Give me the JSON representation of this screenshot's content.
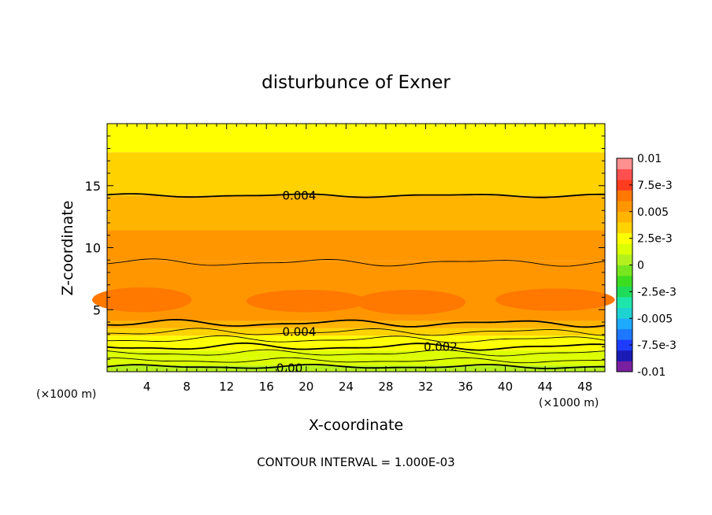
{
  "chart_data": {
    "type": "heatmap",
    "title": "disturbunce of Exner",
    "xlabel": "X-coordinate",
    "ylabel": "Z-coordinate",
    "x_unit_left": "(×1000 m)",
    "x_unit_right": "(×1000 m)",
    "xlim": [
      0,
      50
    ],
    "ylim": [
      0,
      20
    ],
    "x_ticks": [
      4,
      8,
      12,
      16,
      20,
      24,
      28,
      32,
      36,
      40,
      44,
      48
    ],
    "y_ticks": [
      5,
      10,
      15
    ],
    "footer": "CONTOUR INTERVAL = 1.000E-03",
    "contour_interval": 0.001,
    "color_scale": {
      "min": -0.01,
      "max": 0.01,
      "tick_labels": [
        "0.01",
        "7.5e-3",
        "0.005",
        "2.5e-3",
        "0",
        "-2.5e-3",
        "-0.005",
        "-7.5e-3",
        "-0.01"
      ],
      "tick_values": [
        0.01,
        0.0075,
        0.005,
        0.0025,
        0,
        -0.0025,
        -0.005,
        -0.0075,
        -0.01
      ],
      "level_colors": [
        "#7a1fa0",
        "#1a1ab4",
        "#1e3cff",
        "#1e78ff",
        "#1eaaff",
        "#1ed2d2",
        "#1ee6aa",
        "#1edc5a",
        "#3cdc1e",
        "#78e61e",
        "#b4f01e",
        "#dcff00",
        "#ffff00",
        "#ffd200",
        "#ffb400",
        "#ff9600",
        "#ff7800",
        "#ff3c1e",
        "#ff5050",
        "#ff9090"
      ]
    },
    "bands": [
      {
        "z_top": 0.5,
        "value": 0.0005
      },
      {
        "z_top": 1.1,
        "value": 0.0011
      },
      {
        "z_top": 1.7,
        "value": 0.0017
      },
      {
        "z_top": 2.3,
        "value": 0.0023
      },
      {
        "z_top": 2.9,
        "value": 0.0029
      },
      {
        "z_top": 3.5,
        "value": 0.0035
      },
      {
        "z_top": 4.1,
        "value": 0.0042
      },
      {
        "z_top": 8.9,
        "value": 0.0055
      },
      {
        "z_top": 11.4,
        "value": 0.0052
      },
      {
        "z_top": 14.2,
        "value": 0.0045
      },
      {
        "z_top": 17.7,
        "value": 0.0035
      },
      {
        "z_top": 20.0,
        "value": 0.0029
      }
    ],
    "blobs": [
      {
        "x_center": 3.5,
        "x_halfwidth": 5.0,
        "z_center": 5.8,
        "z_halfheight": 1.0,
        "value": 0.0062
      },
      {
        "x_center": 20.0,
        "x_halfwidth": 6.0,
        "z_center": 5.7,
        "z_halfheight": 0.9,
        "value": 0.0062
      },
      {
        "x_center": 30.5,
        "x_halfwidth": 5.5,
        "z_center": 5.6,
        "z_halfheight": 1.0,
        "value": 0.0062
      },
      {
        "x_center": 45.0,
        "x_halfwidth": 6.0,
        "z_center": 5.8,
        "z_halfheight": 0.9,
        "value": 0.0062
      }
    ],
    "contours": [
      {
        "z": 0.4,
        "amp": 0.12,
        "bold": true
      },
      {
        "z": 0.9,
        "amp": 0.15,
        "bold": false
      },
      {
        "z": 1.5,
        "amp": 0.18,
        "bold": false
      },
      {
        "z": 2.0,
        "amp": 0.2,
        "bold": true
      },
      {
        "z": 2.6,
        "amp": 0.2,
        "bold": false
      },
      {
        "z": 3.2,
        "amp": 0.2,
        "bold": false
      },
      {
        "z": 3.9,
        "amp": 0.2,
        "bold": true
      },
      {
        "z": 8.8,
        "amp": 0.2,
        "bold": false
      },
      {
        "z": 14.2,
        "amp": 0.1,
        "bold": true
      }
    ],
    "contour_labels": [
      {
        "text": "0.004",
        "x": 17.6,
        "z": 14.2
      },
      {
        "text": "0.004",
        "x": 17.6,
        "z": 3.2
      },
      {
        "text": "0.002",
        "x": 31.8,
        "z": 2.0
      },
      {
        "text": "0.00",
        "x": 17.0,
        "z": 0.3
      }
    ]
  }
}
